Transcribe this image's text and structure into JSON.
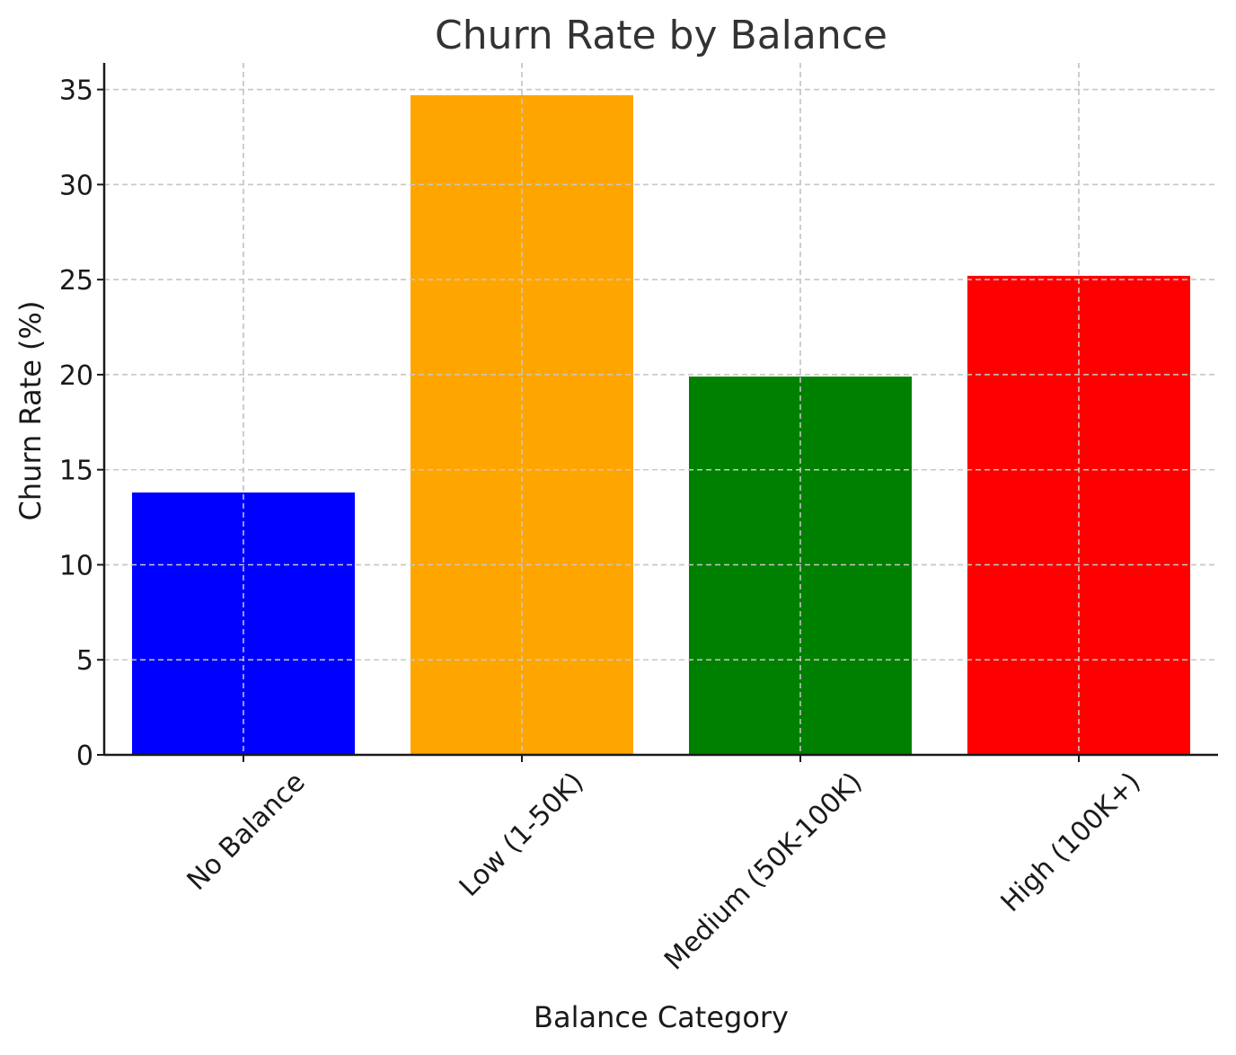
{
  "chart_data": {
    "type": "bar",
    "title": "Churn Rate by Balance",
    "xlabel": "Balance Category",
    "ylabel": "Churn Rate (%)",
    "categories": [
      "No Balance",
      "Low (1-50K)",
      "Medium (50K-100K)",
      "High (100K+)"
    ],
    "values": [
      13.8,
      34.7,
      19.9,
      25.2
    ],
    "colors": [
      "#0000ff",
      "#ffa500",
      "#008000",
      "#ff0000"
    ],
    "ylim": [
      0,
      36.4
    ],
    "yticks": [
      0,
      5,
      10,
      15,
      20,
      25,
      30,
      35
    ],
    "grid": true,
    "legend": "none"
  }
}
